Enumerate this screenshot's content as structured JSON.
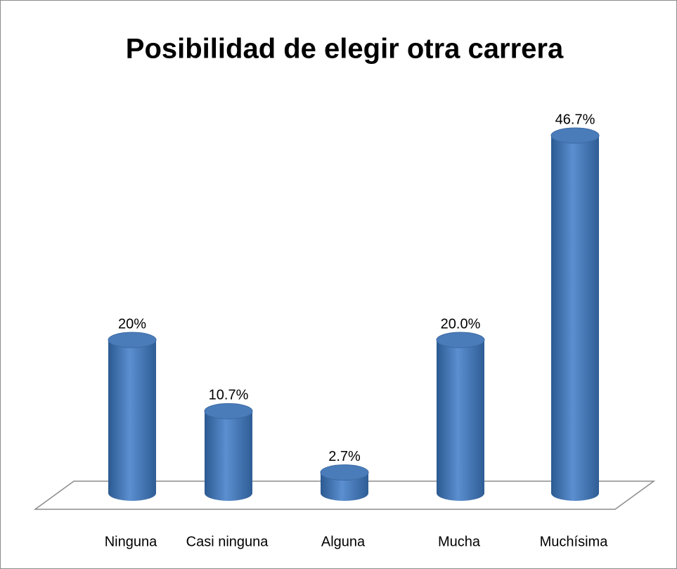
{
  "chart_data": {
    "type": "bar",
    "title": "Posibilidad de elegir otra carrera",
    "categories": [
      "Ninguna",
      "Casi ninguna",
      "Alguna",
      "Mucha",
      "Muchísima"
    ],
    "values": [
      20,
      10.7,
      2.7,
      20.0,
      46.7
    ],
    "value_labels": [
      "20%",
      "10.7%",
      "2.7%",
      "20.0%",
      "46.7%"
    ],
    "color": "#4f81bd"
  }
}
